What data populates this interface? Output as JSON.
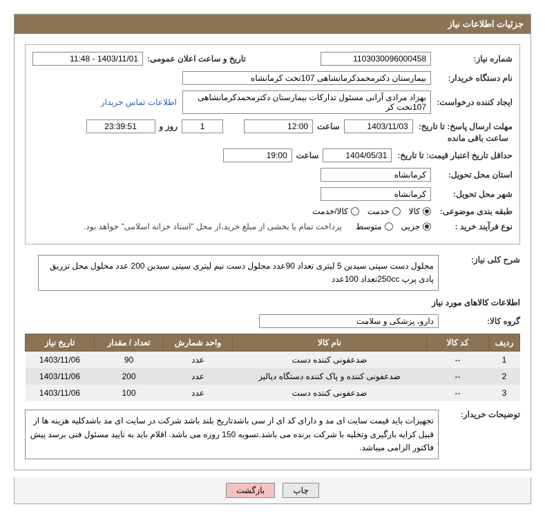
{
  "panel_title": "جزئیات اطلاعات نیاز",
  "fields": {
    "need_number_label": "شماره نیاز:",
    "need_number": "1103030096000458",
    "announce_label": "تاریخ و ساعت اعلان عمومی:",
    "announce_value": "1403/11/01 - 11:48",
    "buyer_org_label": "نام دستگاه خریدار:",
    "buyer_org": "بیمارستان دکترمحمدکرمانشاهی 107تخت کرمانشاه",
    "requester_label": "ایجاد کننده درخواست:",
    "requester": "بهزاد مرادی آرانی مسئول تدارکات بیمارستان دکترمحمدکرمانشاهی 107تخت کر",
    "contact_link": "اطلاعات تماس خریدار",
    "deadline_send_label": "مهلت ارسال پاسخ: تا تاریخ:",
    "deadline_send_date": "1403/11/03",
    "deadline_send_time_label": "ساعت",
    "deadline_send_time": "12:00",
    "remaining_days": "1",
    "remaining_days_label": "روز و",
    "remaining_time": "23:39:51",
    "remaining_suffix": "ساعت باقی مانده",
    "min_validity_label": "حداقل تاریخ اعتبار قیمت: تا تاریخ:",
    "min_validity_date": "1404/05/31",
    "min_validity_time": "19:00",
    "delivery_province_label": "استان محل تحویل:",
    "delivery_province": "کرمانشاه",
    "delivery_city_label": "شهر محل تحویل:",
    "delivery_city": "کرمانشاه",
    "category_label": "طبقه بندی موضوعی:",
    "cat_goods": "کالا",
    "cat_service": "خدمت",
    "cat_goods_service": "کالا/خدمت",
    "purchase_type_label": "نوع فرآیند خرید :",
    "pt_partial": "جزیی",
    "pt_medium": "متوسط",
    "payment_note": "پرداخت تمام یا بخشی از مبلغ خرید،از محل \"اسناد خزانه اسلامی\" خواهد بود.",
    "need_desc_label": "شرح کلی نیاز:",
    "need_desc": "محلول دست سپتی سیدین 5 لیتری تعداد 90عدد محلول دست نیم لیتری سپتی سیدین 200 عدد محلول محل تزریق پادی پرپ 250ccتعداد 100عدد",
    "items_section_title": "اطلاعات کالاهای مورد نیاز",
    "goods_group_label": "گروه کالا:",
    "goods_group": "دارو، پزشکی و سلامت",
    "buyer_notes_label": "توضیحات خریدار:",
    "buyer_notes": "تجهیزات باید قیمت سایت ای مد و دارای کد ای ار سی باشدتاریخ بلند باشد شرکت در سایت ای مد باشدکلیه هزینه ها از قبیل کرایه بارگیری وتخلیه با شرکت برنده می باشد.تسویه 150 روزه می باشد. اقلام باید به تایید مسئول فنی برسد پیش فاکتور الزامی میباشد."
  },
  "table": {
    "headers": [
      "ردیف",
      "کد کالا",
      "نام کالا",
      "واحد شمارش",
      "تعداد / مقدار",
      "تاریخ نیاز"
    ],
    "rows": [
      [
        "1",
        "--",
        "ضدعفونی کننده دست",
        "عدد",
        "90",
        "1403/11/06"
      ],
      [
        "2",
        "--",
        "ضدعفونی کننده و پاک کننده دستگاه دیالیز",
        "عدد",
        "200",
        "1403/11/06"
      ],
      [
        "3",
        "--",
        "ضدعفونی کننده دست",
        "عدد",
        "100",
        "1403/11/06"
      ]
    ]
  },
  "buttons": {
    "print": "چاپ",
    "back": "بازگشت"
  },
  "colors": {
    "header_bg": "#8b7355",
    "header_fg": "#ffffff",
    "row_odd": "#f0f0f0",
    "row_even": "#e4e4e4",
    "link": "#2060c0",
    "btn_back_bg": "#f4c2c2"
  }
}
